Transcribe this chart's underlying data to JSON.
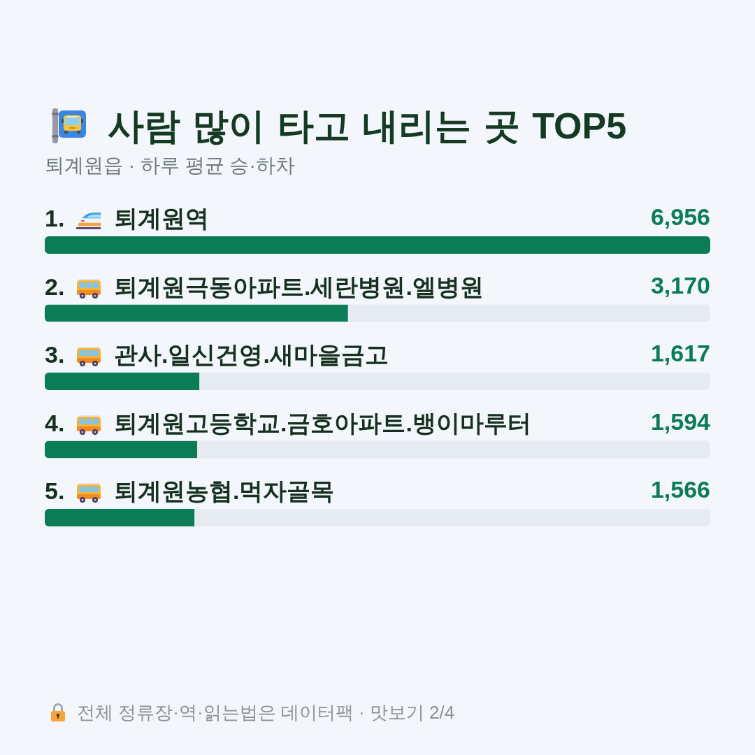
{
  "chart_data": {
    "type": "bar",
    "orientation": "horizontal",
    "title": "사람 많이 타고 내리는 곳 TOP5",
    "subtitle": "퇴계원읍 · 하루 평균 승·하차",
    "categories": [
      "1. 퇴계원역",
      "2. 퇴계원극동아파트.세란병원.엘병원",
      "3. 관사.일신건영.새마을금고",
      "4. 퇴계원고등학교.금호아파트.뱅이마루터",
      "5. 퇴계원농협.먹자골목"
    ],
    "values": [
      6956,
      3170,
      1617,
      1594,
      1566
    ],
    "color": "#0b7c55",
    "value_labels": [
      "6,956",
      "3,170",
      "1,617",
      "1,594",
      "1,566"
    ],
    "annotations": [
      "전체 정류장·역·읽는법은 데이터팩 · 맛보기 2/4"
    ]
  }
}
